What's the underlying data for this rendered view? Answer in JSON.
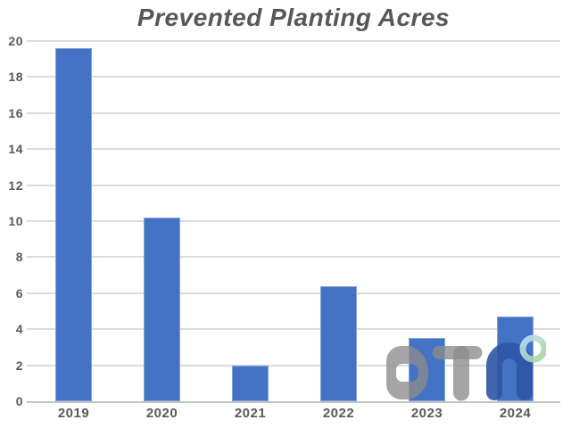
{
  "chart_data": {
    "type": "bar",
    "title": "Prevented Planting Acres",
    "categories": [
      "2019",
      "2020",
      "2021",
      "2022",
      "2023",
      "2024"
    ],
    "values": [
      19.6,
      10.2,
      2.0,
      6.4,
      3.5,
      4.7
    ],
    "xlabel": "",
    "ylabel": "",
    "ylim": [
      0,
      20
    ],
    "ytick_interval": 2,
    "yticks": [
      0,
      2,
      4,
      6,
      8,
      10,
      12,
      14,
      16,
      18,
      20
    ],
    "grid": true,
    "legend": false,
    "colors": {
      "bar": "#4472C4",
      "bar_border": "#7FA3DC",
      "gridline": "#DCDCDC",
      "axis_line": "#C4C4C4",
      "title": "#56575A",
      "tick_label": "#595959"
    },
    "watermark": {
      "name": "DTN",
      "letter_gray": "rgba(140,140,140,0.78)",
      "letter_blue": "rgba(45,85,165,0.9)",
      "ring_blue": "#BFE0F5",
      "ring_green": "#A5D49B"
    }
  }
}
